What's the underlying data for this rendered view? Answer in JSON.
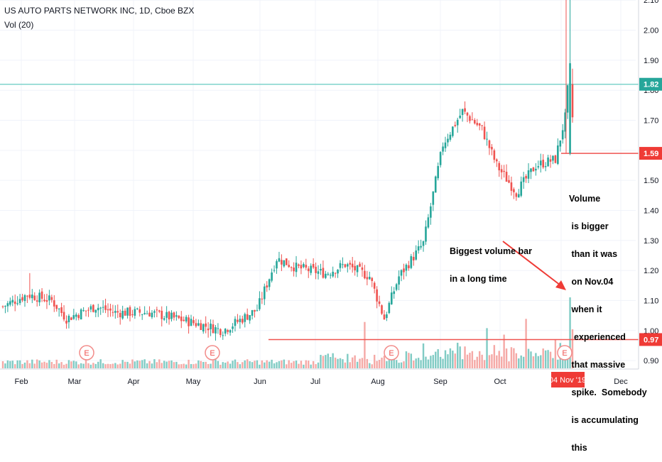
{
  "header": {
    "symbol_line": "US AUTO PARTS NETWORK INC, 1D, Cboe BZX",
    "indicator_line": "Vol (20)"
  },
  "annotations": {
    "left_note": [
      "Biggest volume bar",
      "in a long time"
    ],
    "right_note": [
      "Volume",
      " is bigger",
      " than it was",
      " on Nov.04",
      " when it",
      "  experienced",
      " that massive",
      " spike.  Somebody",
      " is accumulating",
      " this"
    ]
  },
  "colors": {
    "up": "#26a69a",
    "down": "#ef5350",
    "volume_up": "#80cbc4",
    "volume_down": "#f5a9a6",
    "hline_teal": "#7fd3cb",
    "hline_red": "#ef5350",
    "grid": "#f0f3fa",
    "text": "#131722"
  },
  "chart_data": {
    "type": "candlestick",
    "title": "US AUTO PARTS NETWORK INC, 1D, Cboe BZX",
    "price_axis": {
      "ylim": [
        0.86,
        2.11
      ],
      "ticks": [
        "0.90",
        "1.00",
        "1.10",
        "1.20",
        "1.30",
        "1.40",
        "1.50",
        "1.60",
        "1.70",
        "1.80",
        "1.90",
        "2.00",
        "2.10"
      ],
      "scale": "linear"
    },
    "x_ticks": [
      "Feb",
      "Mar",
      "Apr",
      "May",
      "Jun",
      "Jul",
      "Aug",
      "Sep",
      "Oct",
      "Nov",
      "Dec"
    ],
    "highlighted_date": "04 Nov '19",
    "horizontal_lines": [
      {
        "price": 1.82,
        "label": "1.82",
        "color": "teal"
      },
      {
        "price": 1.59,
        "label": "1.59",
        "color": "red"
      },
      {
        "price": 0.97,
        "label": "0.97",
        "color": "red"
      }
    ],
    "earnings_markers": [
      "E",
      "E",
      "E",
      "E"
    ],
    "anchor_closes": [
      [
        0,
        1.08
      ],
      [
        10,
        1.12
      ],
      [
        20,
        1.1
      ],
      [
        26,
        1.04
      ],
      [
        38,
        1.08
      ],
      [
        46,
        1.06
      ],
      [
        60,
        1.06
      ],
      [
        76,
        1.03
      ],
      [
        90,
        1.0
      ],
      [
        104,
        1.07
      ],
      [
        112,
        1.24
      ],
      [
        120,
        1.21
      ],
      [
        132,
        1.19
      ],
      [
        140,
        1.22
      ],
      [
        150,
        1.18
      ],
      [
        156,
        1.04
      ],
      [
        162,
        1.18
      ],
      [
        172,
        1.29
      ],
      [
        180,
        1.62
      ],
      [
        188,
        1.73
      ],
      [
        196,
        1.67
      ],
      [
        202,
        1.55
      ],
      [
        210,
        1.46
      ],
      [
        218,
        1.55
      ],
      [
        226,
        1.57
      ],
      [
        230,
        1.71
      ],
      [
        232,
        1.89
      ],
      [
        233,
        1.71
      ]
    ],
    "volume_profile": "low, rising from Jun, spikes near Aug/Sep/Oct and highest near Nov"
  }
}
